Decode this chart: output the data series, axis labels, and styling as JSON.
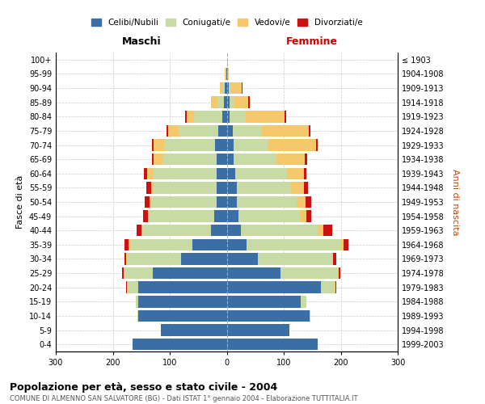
{
  "age_groups": [
    "0-4",
    "5-9",
    "10-14",
    "15-19",
    "20-24",
    "25-29",
    "30-34",
    "35-39",
    "40-44",
    "45-49",
    "50-54",
    "55-59",
    "60-64",
    "65-69",
    "70-74",
    "75-79",
    "80-84",
    "85-89",
    "90-94",
    "95-99",
    "100+"
  ],
  "birth_years": [
    "1999-2003",
    "1994-1998",
    "1989-1993",
    "1984-1988",
    "1979-1983",
    "1974-1978",
    "1969-1973",
    "1964-1968",
    "1959-1963",
    "1954-1958",
    "1949-1953",
    "1944-1948",
    "1939-1943",
    "1934-1938",
    "1929-1933",
    "1924-1928",
    "1919-1923",
    "1914-1918",
    "1909-1913",
    "1904-1908",
    "≤ 1903"
  ],
  "maschi": {
    "celibi": [
      165,
      115,
      155,
      155,
      155,
      130,
      80,
      60,
      28,
      22,
      18,
      18,
      18,
      18,
      20,
      15,
      8,
      5,
      3,
      1,
      0
    ],
    "coniugati": [
      0,
      0,
      2,
      5,
      20,
      50,
      95,
      110,
      120,
      115,
      115,
      110,
      110,
      95,
      90,
      70,
      50,
      12,
      4,
      1,
      0
    ],
    "vedovi": [
      0,
      0,
      0,
      0,
      0,
      1,
      1,
      2,
      2,
      2,
      3,
      5,
      12,
      15,
      18,
      18,
      12,
      10,
      5,
      1,
      0
    ],
    "divorziati": [
      0,
      0,
      0,
      0,
      1,
      2,
      4,
      8,
      8,
      8,
      8,
      8,
      5,
      3,
      3,
      3,
      3,
      1,
      0,
      0,
      0
    ]
  },
  "femmine": {
    "nubili": [
      160,
      110,
      145,
      130,
      165,
      95,
      55,
      35,
      25,
      20,
      18,
      18,
      15,
      12,
      12,
      10,
      5,
      5,
      3,
      1,
      0
    ],
    "coniugate": [
      0,
      0,
      2,
      10,
      25,
      100,
      130,
      165,
      135,
      110,
      105,
      95,
      90,
      75,
      60,
      52,
      28,
      8,
      3,
      0,
      0
    ],
    "vedove": [
      0,
      0,
      0,
      0,
      1,
      2,
      2,
      5,
      10,
      10,
      15,
      22,
      30,
      50,
      85,
      82,
      68,
      25,
      20,
      2,
      0
    ],
    "divorziate": [
      0,
      0,
      0,
      0,
      1,
      2,
      5,
      8,
      15,
      8,
      10,
      8,
      5,
      4,
      3,
      3,
      3,
      2,
      1,
      0,
      0
    ]
  },
  "colors": {
    "celibi": "#3a6ea5",
    "coniugati": "#c8dba4",
    "vedovi": "#f5c96b",
    "divorziati": "#cc1111"
  },
  "legend_labels": [
    "Celibi/Nubili",
    "Coniugati/e",
    "Vedovi/e",
    "Divorziati/e"
  ],
  "title": "Popolazione per età, sesso e stato civile - 2004",
  "subtitle": "COMUNE DI ALMENNO SAN SALVATORE (BG) - Dati ISTAT 1° gennaio 2004 - Elaborazione TUTTITALIA.IT",
  "xlabel_left": "Maschi",
  "xlabel_right": "Femmine",
  "ylabel_left": "Fasce di età",
  "ylabel_right": "Anni di nascita",
  "xlim": 300,
  "background_color": "#ffffff",
  "grid_color": "#cccccc"
}
